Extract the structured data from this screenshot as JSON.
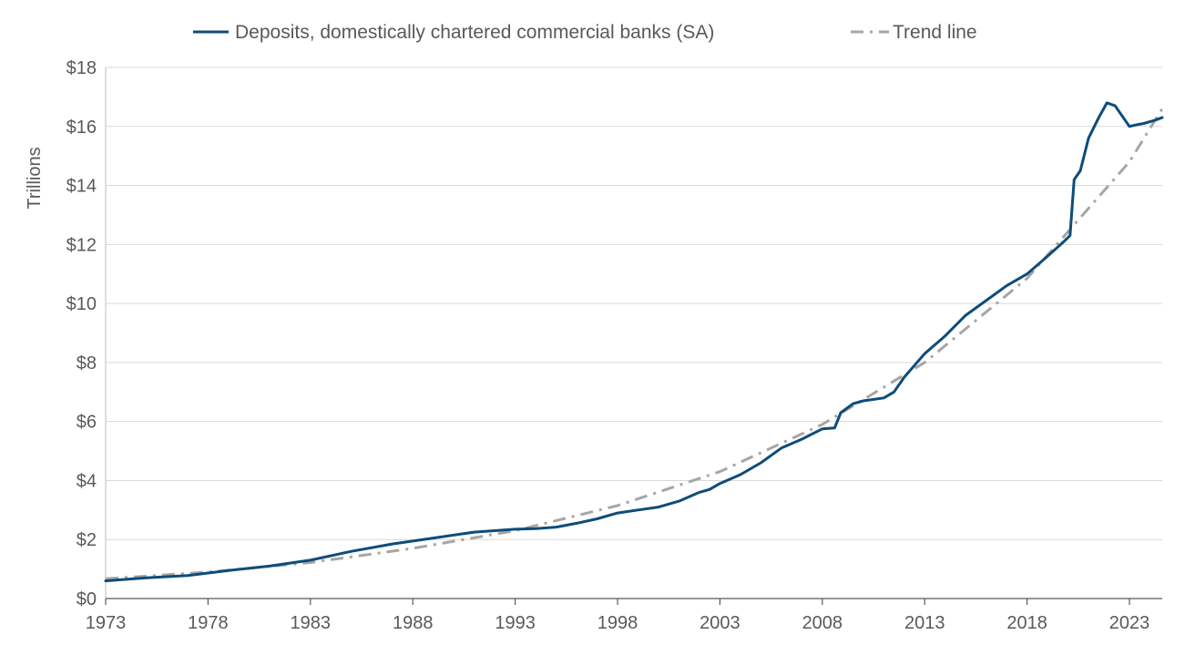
{
  "chart_data": {
    "type": "line",
    "title": "",
    "xlabel": "",
    "ylabel": "Trillions",
    "xlim": [
      1973,
      2024.6
    ],
    "ylim": [
      0,
      18
    ],
    "y_ticks": [
      0,
      2,
      4,
      6,
      8,
      10,
      12,
      14,
      16,
      18
    ],
    "y_tick_labels": [
      "$0",
      "$2",
      "$4",
      "$6",
      "$8",
      "$10",
      "$12",
      "$14",
      "$16",
      "$18"
    ],
    "x_ticks": [
      1973,
      1978,
      1983,
      1988,
      1993,
      1998,
      2003,
      2008,
      2013,
      2018,
      2023
    ],
    "x_tick_labels": [
      "1973",
      "1978",
      "1983",
      "1988",
      "1993",
      "1998",
      "2003",
      "2008",
      "2013",
      "2018",
      "2023"
    ],
    "grid": "horizontal",
    "legend_position": "top",
    "series": [
      {
        "name": "Deposits, domestically chartered commercial banks (SA)",
        "style": "solid",
        "color": "#0E4C7A",
        "x": [
          1973,
          1975,
          1977,
          1979,
          1981,
          1983,
          1985,
          1987,
          1989,
          1991,
          1993,
          1994,
          1995,
          1996,
          1997,
          1998,
          1999,
          2000,
          2001,
          2002,
          2002.5,
          2003,
          2004,
          2005,
          2006,
          2007,
          2008,
          2008.6,
          2008.9,
          2009.5,
          2010,
          2011,
          2011.5,
          2012,
          2013,
          2014,
          2015,
          2016,
          2017,
          2018,
          2019,
          2019.8,
          2020.1,
          2020.3,
          2020.6,
          2021,
          2021.5,
          2021.9,
          2022.3,
          2022.6,
          2023.0,
          2023.3,
          2023.7,
          2024.2,
          2024.6
        ],
        "values": [
          0.6,
          0.7,
          0.78,
          0.95,
          1.1,
          1.3,
          1.6,
          1.85,
          2.05,
          2.25,
          2.35,
          2.37,
          2.42,
          2.55,
          2.7,
          2.9,
          3.0,
          3.1,
          3.3,
          3.6,
          3.7,
          3.9,
          4.2,
          4.6,
          5.1,
          5.4,
          5.75,
          5.78,
          6.3,
          6.6,
          6.7,
          6.8,
          7.0,
          7.5,
          8.3,
          8.9,
          9.6,
          10.1,
          10.6,
          11.0,
          11.6,
          12.1,
          12.3,
          14.2,
          14.5,
          15.6,
          16.3,
          16.8,
          16.7,
          16.4,
          16.0,
          16.05,
          16.1,
          16.2,
          16.3
        ]
      },
      {
        "name": "Trend line",
        "style": "dash-dot",
        "color": "#A6A6A6",
        "x": [
          1973,
          1978,
          1983,
          1988,
          1993,
          1998,
          2003,
          2008,
          2013,
          2018,
          2023,
          2024.6
        ],
        "values": [
          0.67,
          0.9,
          1.22,
          1.7,
          2.3,
          3.15,
          4.3,
          5.9,
          8.0,
          10.85,
          14.8,
          16.6
        ]
      }
    ]
  }
}
